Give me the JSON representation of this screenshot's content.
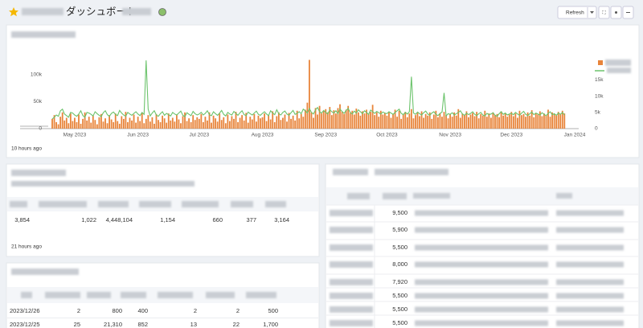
{
  "header": {
    "title": "ダッシュボート",
    "refresh": "Refresh"
  },
  "chart_data": {
    "type": "bar",
    "categories": [
      null,
      null,
      null,
      null,
      null,
      null,
      null,
      null,
      null,
      null,
      null,
      "May 2023",
      null,
      null,
      null,
      null,
      null,
      null,
      null,
      null,
      null,
      null,
      null,
      null,
      null,
      null,
      null,
      null,
      null,
      null,
      null,
      null,
      null,
      null,
      null,
      null,
      null,
      null,
      null,
      null,
      null,
      null,
      "Jun 2023",
      null,
      null,
      null,
      null,
      null,
      null,
      null,
      null,
      null,
      null,
      null,
      null,
      null,
      null,
      null,
      null,
      null,
      null,
      null,
      null,
      null,
      null,
      null,
      null,
      null,
      null,
      null,
      null,
      null,
      "Jul 2023",
      null,
      null,
      null,
      null,
      null,
      null,
      null,
      null,
      null,
      null,
      null,
      null,
      null,
      null,
      null,
      null,
      null,
      null,
      null,
      null,
      null,
      null,
      null,
      null,
      null,
      null,
      null,
      null,
      null,
      null,
      "Aug 2023",
      null,
      null,
      null,
      null,
      null,
      null,
      null,
      null,
      null,
      null,
      null,
      null,
      null,
      null,
      null,
      null,
      null,
      null,
      null,
      null,
      null,
      null,
      null,
      null,
      null,
      null,
      null,
      null,
      null,
      null,
      "Sep 2023",
      null,
      null,
      null,
      null,
      null,
      null,
      null,
      null,
      null,
      null,
      null,
      null,
      null,
      null,
      null,
      null,
      null,
      null,
      null,
      null,
      null,
      null,
      null,
      null,
      null,
      null,
      null,
      null,
      null,
      "Oct 2023",
      null,
      null,
      null,
      null,
      null,
      null,
      null,
      null,
      null,
      null,
      null,
      null,
      null,
      null,
      null,
      null,
      null,
      null,
      null,
      null,
      null,
      null,
      null,
      null,
      null,
      null,
      null,
      null,
      null,
      null,
      "Nov 2023",
      null,
      null,
      null,
      null,
      null,
      null,
      null,
      null,
      null,
      null,
      null,
      null,
      null,
      null,
      null,
      null,
      null,
      null,
      null,
      null,
      null,
      null,
      null,
      null,
      null,
      null,
      null,
      null,
      null,
      "Dec 2023",
      null,
      null,
      null,
      null,
      null,
      null,
      null,
      null,
      null,
      null,
      null,
      null,
      null,
      null,
      null,
      null,
      null,
      null,
      null,
      null,
      null,
      null,
      null,
      null,
      null,
      null,
      null,
      null,
      null,
      null,
      "Jan 2024"
    ],
    "series": [
      {
        "type": "bar",
        "color": "#e8843a",
        "values": [
          18000,
          25000,
          12000,
          8000,
          22000,
          30000,
          15000,
          20000,
          10000,
          28000,
          14000,
          20000,
          12000,
          26000,
          9000,
          18000,
          30000,
          15000,
          22000,
          11000,
          24000,
          16000,
          8000,
          21000,
          27000,
          13000,
          19000,
          10000,
          25000,
          17000,
          12000,
          28000,
          14000,
          9000,
          23000,
          18000,
          31000,
          12000,
          20000,
          15000,
          26000,
          11000,
          22000,
          14000,
          29000,
          10000,
          18000,
          25000,
          13000,
          21000,
          9000,
          27000,
          16000,
          12000,
          24000,
          19000,
          11000,
          28000,
          15000,
          20000,
          13000,
          26000,
          17000,
          10000,
          23000,
          30000,
          14000,
          19000,
          12000,
          25000,
          16000,
          21000,
          18000,
          27000,
          12000,
          22000,
          15000,
          30000,
          11000,
          24000,
          19000,
          13000,
          28000,
          16000,
          21000,
          10000,
          26000,
          14000,
          23000,
          18000,
          31000,
          12000,
          20000,
          25000,
          15000,
          29000,
          11000,
          22000,
          17000,
          27000,
          13000,
          24000,
          19000,
          21000,
          28000,
          14000,
          25000,
          17000,
          32000,
          12000,
          23000,
          30000,
          16000,
          20000,
          26000,
          13000,
          29000,
          18000,
          24000,
          15000,
          33000,
          19000,
          27000,
          22000,
          35000,
          48000,
          127000,
          30000,
          20000,
          38000,
          26000,
          42000,
          28000,
          33000,
          36000,
          30000,
          40000,
          25000,
          34000,
          28000,
          38000,
          45000,
          31000,
          27000,
          35000,
          42000,
          29000,
          33000,
          26000,
          37000,
          30000,
          24000,
          32000,
          28000,
          35000,
          27000,
          31000,
          44000,
          25000,
          30000,
          22000,
          33000,
          26000,
          29000,
          24000,
          30000,
          20000,
          27000,
          35000,
          22000,
          33000,
          18000,
          26000,
          31000,
          21000,
          28000,
          36000,
          19000,
          25000,
          29000,
          23000,
          32000,
          20000,
          27000,
          24000,
          30000,
          18000,
          26000,
          33000,
          21000,
          28000,
          22000,
          31000,
          25000,
          19000,
          27000,
          22000,
          30000,
          24000,
          36000,
          20000,
          28000,
          25000,
          32000,
          21000,
          26000,
          29000,
          23000,
          31000,
          19000,
          27000,
          24000,
          33000,
          22000,
          28000,
          20000,
          30000,
          25000,
          27000,
          21000,
          32000,
          24000,
          29000,
          22000,
          26000,
          31000,
          23000,
          28000,
          20000,
          33000,
          25000,
          27000,
          22000,
          30000,
          24000,
          34000,
          21000,
          29000,
          26000,
          32000,
          23000,
          28000,
          25000,
          35000,
          22000,
          30000,
          27000,
          24000,
          31000,
          26000,
          33000,
          28000,
          null,
          null,
          null,
          null,
          null
        ]
      },
      {
        "type": "line",
        "axis": "y2",
        "color": "#6cc36c",
        "values": [
          3000,
          3500,
          4200,
          3800,
          5500,
          6000,
          4500,
          4000,
          3500,
          5000,
          4800,
          4200,
          3800,
          4500,
          5500,
          4000,
          3500,
          5000,
          4800,
          4400,
          3900,
          5200,
          4600,
          4100,
          3700,
          4900,
          5500,
          4300,
          3800,
          4700,
          5100,
          4400,
          4000,
          5600,
          4800,
          4200,
          3800,
          5000,
          4500,
          4100,
          4700,
          5200,
          4500,
          4000,
          5000,
          4400,
          21000,
          6000,
          3900,
          4800,
          5500,
          4200,
          3800,
          4600,
          5200,
          4100,
          4700,
          4300,
          3900,
          5000,
          4500,
          4200,
          4800,
          5400,
          4100,
          3700,
          4900,
          4400,
          4000,
          5300,
          4600,
          4200,
          4500,
          5000,
          4200,
          4700,
          5500,
          4300,
          4000,
          5200,
          4600,
          4100,
          4800,
          5600,
          4400,
          3900,
          5000,
          4500,
          4200,
          5300,
          4700,
          4100,
          4900,
          5500,
          4300,
          4000,
          5100,
          4600,
          4200,
          4800,
          5400,
          4400,
          4100,
          4700,
          5200,
          4500,
          4000,
          5500,
          4800,
          4300,
          5800,
          4600,
          4200,
          5000,
          5400,
          4500,
          4100,
          4900,
          5600,
          4400,
          4700,
          5200,
          4600,
          6000,
          5500,
          4800,
          6200,
          5000,
          4500,
          5800,
          6500,
          5200,
          4800,
          5600,
          5000,
          4500,
          5800,
          5200,
          4800,
          5500,
          4600,
          6000,
          5300,
          4700,
          5600,
          6200,
          5000,
          4500,
          5400,
          4800,
          5800,
          5200,
          4600,
          5500,
          5000,
          4400,
          5700,
          5200,
          4700,
          5300,
          4900,
          4500,
          5100,
          4800,
          4600,
          5200,
          4800,
          4400,
          5000,
          5500,
          6000,
          4700,
          4300,
          5000,
          4500,
          5200,
          16000,
          4800,
          4400,
          5100,
          4600,
          4200,
          4900,
          5400,
          4500,
          4100,
          4800,
          5200,
          4400,
          4000,
          4700,
          5100,
          11000,
          3900,
          4600,
          4400,
          4900,
          4200,
          4600,
          5000,
          5500,
          4500,
          4100,
          4800,
          4300,
          4700,
          5200,
          4400,
          4000,
          4600,
          5000,
          4200,
          3900,
          4700,
          4300,
          4500,
          4900,
          4100,
          3800,
          4600,
          5200,
          4400,
          4800,
          4200,
          4500,
          4700,
          4300,
          5000,
          4500,
          4100,
          4800,
          5300,
          4400,
          4000,
          4600,
          5100,
          4300,
          4800,
          4500,
          4200,
          4900,
          4400,
          4000,
          4700,
          5200,
          4300,
          4600,
          4100,
          4800,
          4400,
          5000,
          4200,
          null,
          null,
          null,
          null,
          null
        ]
      }
    ],
    "ylim": [
      0,
      150000
    ],
    "yticks": [
      0,
      {
        "value": 50000,
        "label": "50k"
      },
      {
        "value": 100000,
        "label": "100k"
      }
    ],
    "y2lim": [
      0,
      25000
    ],
    "y2ticks": [
      0,
      {
        "value": 5000,
        "label": "5k"
      },
      {
        "value": 10000,
        "label": "10k"
      },
      {
        "value": 15000,
        "label": "15k"
      }
    ],
    "grid": false,
    "legend": "right"
  },
  "chart_footer": "10 hours ago",
  "summary": {
    "rows": [
      [
        "3,854",
        "1,022",
        "4,448,104",
        "1,154",
        "660",
        "377",
        "3,164"
      ]
    ],
    "footer": "21 hours ago"
  },
  "daily": {
    "rows": [
      [
        "2023/12/26",
        "2",
        "800",
        "400",
        "2",
        "2",
        "500"
      ],
      [
        "2023/12/25",
        "25",
        "21,310",
        "852",
        "13",
        "22",
        "1,700"
      ]
    ]
  },
  "ranking": {
    "values": [
      "9,500",
      "5,900",
      "5,500",
      "8,000",
      "7,920",
      "5,500",
      "5,500",
      "5,500"
    ]
  }
}
